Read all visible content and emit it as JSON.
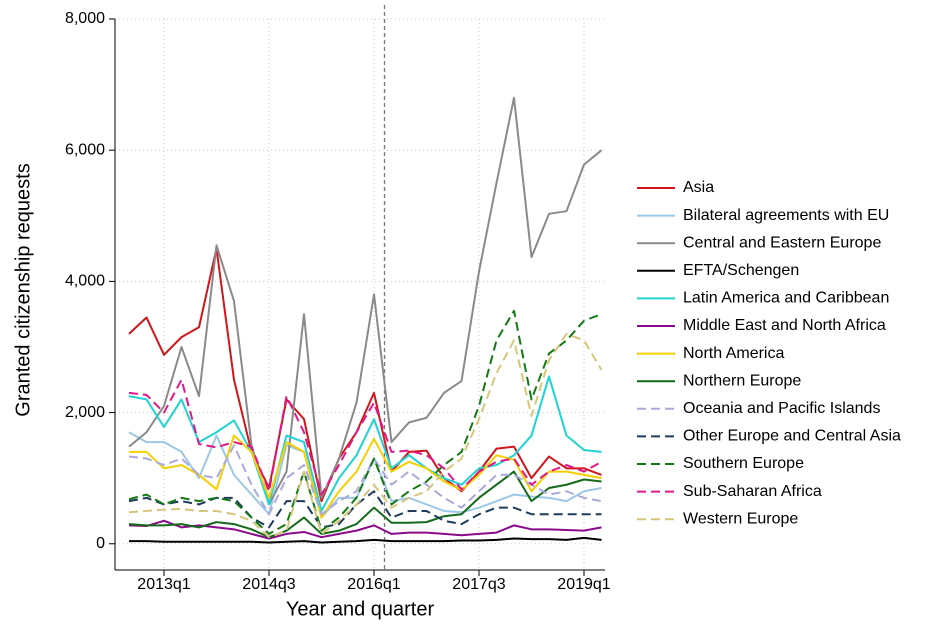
{
  "chart_data": {
    "type": "line",
    "x_label": "Year and quarter",
    "y_label": "Granted citizenship requests",
    "x": [
      2012.5,
      2012.75,
      2013,
      2013.25,
      2013.5,
      2013.75,
      2014,
      2014.25,
      2014.5,
      2014.75,
      2015,
      2015.25,
      2015.5,
      2015.75,
      2016,
      2016.25,
      2016.5,
      2016.75,
      2017,
      2017.25,
      2017.5,
      2017.75,
      2018,
      2018.25,
      2018.5,
      2018.75,
      2019,
      2019.25
    ],
    "xlim": [
      2012.3,
      2019.3
    ],
    "xticks": [
      {
        "value": 2013,
        "label": "2013q1"
      },
      {
        "value": 2014.5,
        "label": "2014q3"
      },
      {
        "value": 2016,
        "label": "2016q1"
      },
      {
        "value": 2017.5,
        "label": "2017q3"
      },
      {
        "value": 2019,
        "label": "2019q1"
      }
    ],
    "ylim": [
      -400,
      8000
    ],
    "yticks": [
      0,
      {
        "value": 2000,
        "label": "2,000"
      },
      {
        "value": 4000,
        "label": "4,000"
      },
      {
        "value": 6000,
        "label": "6,000"
      },
      {
        "value": 8000,
        "label": "8,000"
      }
    ],
    "grid": true,
    "vline": 2016.15,
    "legend": "right",
    "series": [
      {
        "name": "Asia",
        "color": "#d0151b",
        "dashed": false,
        "values": [
          3200,
          3450,
          2880,
          3150,
          3300,
          4500,
          2500,
          1400,
          850,
          2200,
          1900,
          650,
          1300,
          1700,
          2300,
          1100,
          1400,
          1420,
          1000,
          800,
          1100,
          1450,
          1480,
          1000,
          1330,
          1150,
          1150,
          1050
        ]
      },
      {
        "name": "Bilateral agreements with EU",
        "color": "#9cc8e6",
        "dashed": false,
        "values": [
          1700,
          1550,
          1550,
          1400,
          1000,
          1650,
          1050,
          750,
          450,
          1500,
          1400,
          400,
          700,
          700,
          1300,
          650,
          700,
          600,
          500,
          480,
          550,
          650,
          750,
          720,
          700,
          650,
          800,
          850
        ]
      },
      {
        "name": "Central and Eastern Europe",
        "color": "#8a8a8a",
        "dashed": false,
        "values": [
          1480,
          1700,
          2100,
          3000,
          2250,
          4550,
          3700,
          1500,
          600,
          1100,
          3500,
          700,
          1300,
          2150,
          3800,
          1550,
          1850,
          1920,
          2300,
          2480,
          4150,
          5500,
          6800,
          4370,
          5030,
          5070,
          5780,
          6000
        ]
      },
      {
        "name": "EFTA/Schengen",
        "color": "#000000",
        "dashed": false,
        "values": [
          40,
          40,
          30,
          30,
          30,
          30,
          30,
          30,
          20,
          30,
          40,
          20,
          30,
          40,
          60,
          40,
          40,
          40,
          40,
          50,
          50,
          60,
          80,
          70,
          70,
          60,
          90,
          60
        ]
      },
      {
        "name": "Latin America and Caribbean",
        "color": "#1ed3d3",
        "dashed": false,
        "values": [
          2250,
          2200,
          1780,
          2200,
          1550,
          1700,
          1880,
          1400,
          600,
          1650,
          1550,
          500,
          1000,
          1350,
          1900,
          1150,
          1350,
          1150,
          1000,
          900,
          1150,
          1200,
          1350,
          1650,
          2550,
          1650,
          1430,
          1400
        ]
      },
      {
        "name": "Middle East and North Africa",
        "color": "#8b0a8b",
        "dashed": false,
        "values": [
          280,
          270,
          350,
          250,
          280,
          250,
          220,
          150,
          80,
          150,
          180,
          100,
          150,
          200,
          280,
          150,
          170,
          170,
          150,
          130,
          150,
          170,
          280,
          220,
          220,
          210,
          200,
          250
        ]
      },
      {
        "name": "North America",
        "color": "#f5cf00",
        "dashed": false,
        "values": [
          1400,
          1400,
          1150,
          1200,
          1050,
          830,
          1650,
          1400,
          700,
          1550,
          1400,
          400,
          800,
          1100,
          1600,
          1100,
          1250,
          1150,
          950,
          820,
          1050,
          1350,
          1280,
          800,
          1100,
          1100,
          1050,
          1000
        ]
      },
      {
        "name": "Northern Europe",
        "color": "#15691a",
        "dashed": false,
        "values": [
          300,
          280,
          280,
          300,
          250,
          330,
          300,
          220,
          100,
          200,
          400,
          150,
          200,
          300,
          550,
          320,
          320,
          330,
          420,
          450,
          700,
          900,
          1100,
          650,
          850,
          900,
          980,
          950
        ]
      },
      {
        "name": "Oceania and Pacific Islands",
        "color": "#a9a9dc",
        "dashed": true,
        "values": [
          1330,
          1300,
          1200,
          1300,
          1050,
          1000,
          1500,
          900,
          450,
          1000,
          1200,
          450,
          650,
          800,
          1300,
          900,
          1100,
          900,
          700,
          550,
          800,
          1050,
          1050,
          900,
          750,
          800,
          700,
          650
        ]
      },
      {
        "name": "Other Europe and Central Asia",
        "color": "#1f3b5e",
        "dashed": true,
        "values": [
          650,
          700,
          600,
          650,
          600,
          700,
          700,
          400,
          250,
          650,
          650,
          250,
          300,
          600,
          800,
          400,
          500,
          500,
          350,
          300,
          450,
          550,
          550,
          450,
          450,
          450,
          450,
          450
        ]
      },
      {
        "name": "Southern Europe",
        "color": "#137a13",
        "dashed": true,
        "values": [
          680,
          750,
          600,
          700,
          650,
          700,
          650,
          400,
          150,
          300,
          1100,
          200,
          400,
          700,
          1300,
          600,
          800,
          950,
          1200,
          1400,
          2100,
          3100,
          3550,
          2200,
          2900,
          3100,
          3400,
          3500
        ]
      },
      {
        "name": "Sub-Saharan Africa",
        "color": "#e0198a",
        "dashed": true,
        "values": [
          2300,
          2270,
          2000,
          2500,
          1520,
          1470,
          1550,
          1480,
          800,
          2250,
          1700,
          750,
          1200,
          1700,
          2150,
          1400,
          1420,
          1350,
          1150,
          830,
          1100,
          1250,
          1300,
          900,
          1100,
          1200,
          1100,
          1250
        ]
      },
      {
        "name": "Western Europe",
        "color": "#d6c67c",
        "dashed": true,
        "values": [
          480,
          500,
          520,
          530,
          500,
          500,
          450,
          350,
          100,
          200,
          1100,
          150,
          350,
          600,
          900,
          550,
          700,
          800,
          1100,
          1300,
          1900,
          2600,
          3100,
          1950,
          2800,
          3200,
          3100,
          2650
        ]
      }
    ]
  }
}
